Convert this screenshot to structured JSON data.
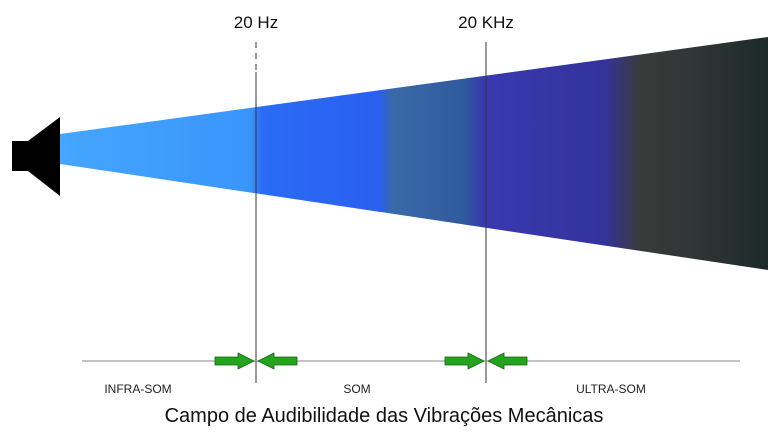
{
  "markers": {
    "low": {
      "label": "20 Hz"
    },
    "high": {
      "label": "20 KHz"
    }
  },
  "regions": {
    "infra": "INFRA-SOM",
    "sound": "SOM",
    "ultra": "ULTRA-SOM"
  },
  "caption": "Campo de Audibilidade das Vibrações Mecânicas",
  "icons": {
    "source": "speaker-icon",
    "boundary_marker": "green-converging-arrows-icon"
  },
  "colors": {
    "infra": "#3d9cfb",
    "sound": "#2b66f0",
    "ultra": "#3a36a0",
    "beyond": "#1f2a2a",
    "arrow": "#24a31e",
    "line": "#333333"
  }
}
